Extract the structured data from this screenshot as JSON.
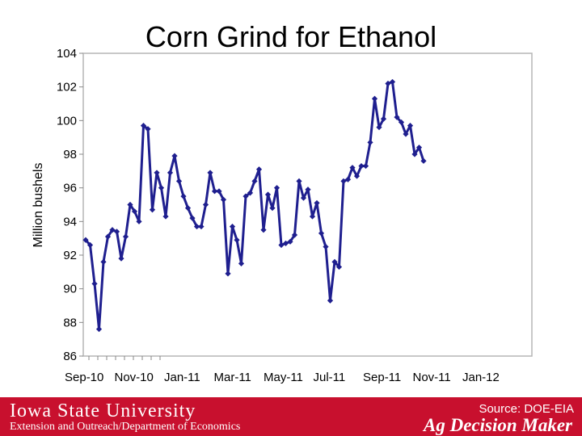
{
  "chart_data": {
    "type": "line",
    "title": "Corn Grind for Ethanol",
    "ylabel": "Million bushels",
    "xlabel": "",
    "ylim": [
      86,
      104
    ],
    "yticks": [
      86,
      88,
      90,
      92,
      94,
      96,
      98,
      100,
      102,
      104
    ],
    "xtick_labels": [
      "Sep-10",
      "Nov-10",
      "Jan-11",
      "Mar-11",
      "May-11",
      "Jul-11",
      "Sep-11",
      "Nov-11",
      "Jan-12"
    ],
    "grid": false,
    "legend": "none",
    "line_color": "#1f1f8f",
    "series": [
      {
        "values": [
          92.9,
          92.6,
          90.3,
          87.6,
          91.6,
          93.1,
          93.5,
          93.4,
          91.8,
          93.1,
          95.0,
          94.6,
          94.0,
          99.7,
          99.5,
          94.7,
          96.9,
          96.0,
          94.3,
          96.9,
          97.9,
          96.4,
          95.5,
          94.8,
          94.2,
          93.7,
          93.7,
          95.0,
          96.9,
          95.8,
          95.8,
          95.3,
          90.9,
          93.7,
          92.9,
          91.5,
          95.5,
          95.7,
          96.4,
          97.1,
          93.5,
          95.6,
          94.8,
          96.0,
          92.6,
          92.7,
          92.8,
          93.2,
          96.4,
          95.4,
          95.9,
          94.3,
          95.1,
          93.3,
          92.5,
          89.3,
          91.6,
          91.3,
          96.4,
          96.5,
          97.2,
          96.7,
          97.3,
          97.3,
          98.7,
          101.3,
          99.6,
          100.1,
          102.2,
          102.3,
          100.2,
          99.9,
          99.2,
          99.7,
          98.0,
          98.4,
          97.6
        ]
      }
    ]
  },
  "footer": {
    "university": "Iowa State University",
    "department": "Extension and Outreach/Department of Economics",
    "source": "Source: DOE-EIA",
    "brand": "Ag Decision Maker",
    "background_color": "#c8102e"
  }
}
